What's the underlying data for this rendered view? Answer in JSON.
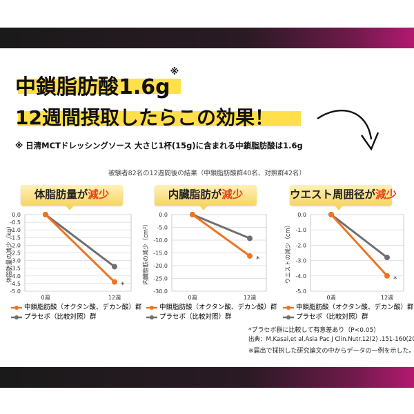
{
  "headline": {
    "line1": "中鎖脂肪酸1.6g",
    "line1_mark": "※",
    "line2": "12週間摂取したらこの効果！"
  },
  "subtitle": "※ 日清MCTドレッシングソース 大さじ1杯(15g)に含まれる中鎖脂肪酸は1.6g",
  "caption": "被験者82名の12週間後の結果（中鎖脂肪酸群40名、対照群42名）",
  "panels": [
    {
      "banner_main": "体脂肪量が",
      "banner_red": "減少"
    },
    {
      "banner_main": "内臓脂肪が",
      "banner_red": "減少"
    },
    {
      "banner_main": "ウエスト周囲径が",
      "banner_red": "減少"
    }
  ],
  "legend": {
    "mct": "中鎖脂肪酸（オクタン酸、デカン酸）群",
    "placebo": "プラセボ（比較対照）群"
  },
  "notes": {
    "line1": "*プラセボ群に比較して有意差あり（P<0.05）",
    "line2": "出典：M.Kasai,et al,Asia Pac J Clin.Nutr.12(2) .151-160(2003)",
    "line3": "※届出で採択した研究論文の中からデータの一例を示した。"
  },
  "colors": {
    "mct": "#ee7421",
    "placebo": "#6f6f6f",
    "banner": "#f7d565",
    "accent_red": "#e8451c",
    "highlight": "#ffe04a"
  },
  "chart_data": [
    {
      "type": "line",
      "ylabel": "体脂肪量の減少（kg）",
      "categories": [
        "0週",
        "12週"
      ],
      "ylim": [
        -5.0,
        0.0
      ],
      "yticks": [
        "0.0",
        "-0.5",
        "-1.0",
        "-1.5",
        "-2.0",
        "-2.5",
        "-3.0",
        "-3.5",
        "-4.0",
        "-4.5",
        "-5.0"
      ],
      "series": [
        {
          "name": "中鎖脂肪酸（オクタン酸、デカン酸）群",
          "values": [
            0.0,
            -4.4
          ],
          "significance": "*"
        },
        {
          "name": "プラセボ（比較対照）群",
          "values": [
            0.0,
            -3.4
          ]
        }
      ]
    },
    {
      "type": "line",
      "ylabel": "内臓脂肪の減少（cm²）",
      "categories": [
        "0週",
        "12週"
      ],
      "ylim": [
        -30.0,
        0.0
      ],
      "yticks": [
        "0.0",
        "-5.0",
        "-10.0",
        "-15.0",
        "-20.0",
        "-25.0",
        "-30.0"
      ],
      "series": [
        {
          "name": "中鎖脂肪酸（オクタン酸、デカン酸）群",
          "values": [
            0.0,
            -16.2
          ],
          "significance": "*"
        },
        {
          "name": "プラセボ（比較対照）群",
          "values": [
            0.0,
            -9.3
          ]
        }
      ]
    },
    {
      "type": "line",
      "ylabel": "ウエストの減少（cm）",
      "categories": [
        "0週",
        "12週"
      ],
      "ylim": [
        -5.0,
        0.0
      ],
      "yticks": [
        "0.0",
        "-1.0",
        "-2.0",
        "-3.0",
        "-4.0",
        "-5.0"
      ],
      "series": [
        {
          "name": "中鎖脂肪酸（オクタン酸、デカン酸）群",
          "values": [
            0.0,
            -4.0
          ],
          "significance": "*"
        },
        {
          "name": "プラセボ（比較対照）群",
          "values": [
            0.0,
            -2.8
          ]
        }
      ]
    }
  ]
}
